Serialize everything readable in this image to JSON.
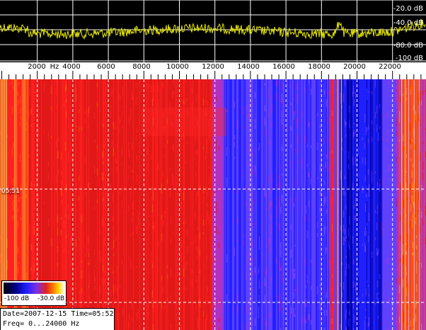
{
  "spectrum": {
    "db_labels": [
      "-20.0 dB",
      "-40.0 dB",
      "-80.0 dB",
      "-100 dB"
    ],
    "trace_color": "#e8e800"
  },
  "freq_axis": {
    "labels": [
      "2000",
      "Hz",
      "4000",
      "6000",
      "8000",
      "10000",
      "12000",
      "14000",
      "16000",
      "18000",
      "20000",
      "22000"
    ]
  },
  "waterfall": {
    "time_marker": "05:51",
    "grid_color": "#ffffff"
  },
  "legend": {
    "min_label": "-100 dB",
    "max_label": "-30.0 dB"
  },
  "info": {
    "line1": "Date=2007-12-15 Time=05:52",
    "line2": "Freq= 0...24000 Hz"
  }
}
